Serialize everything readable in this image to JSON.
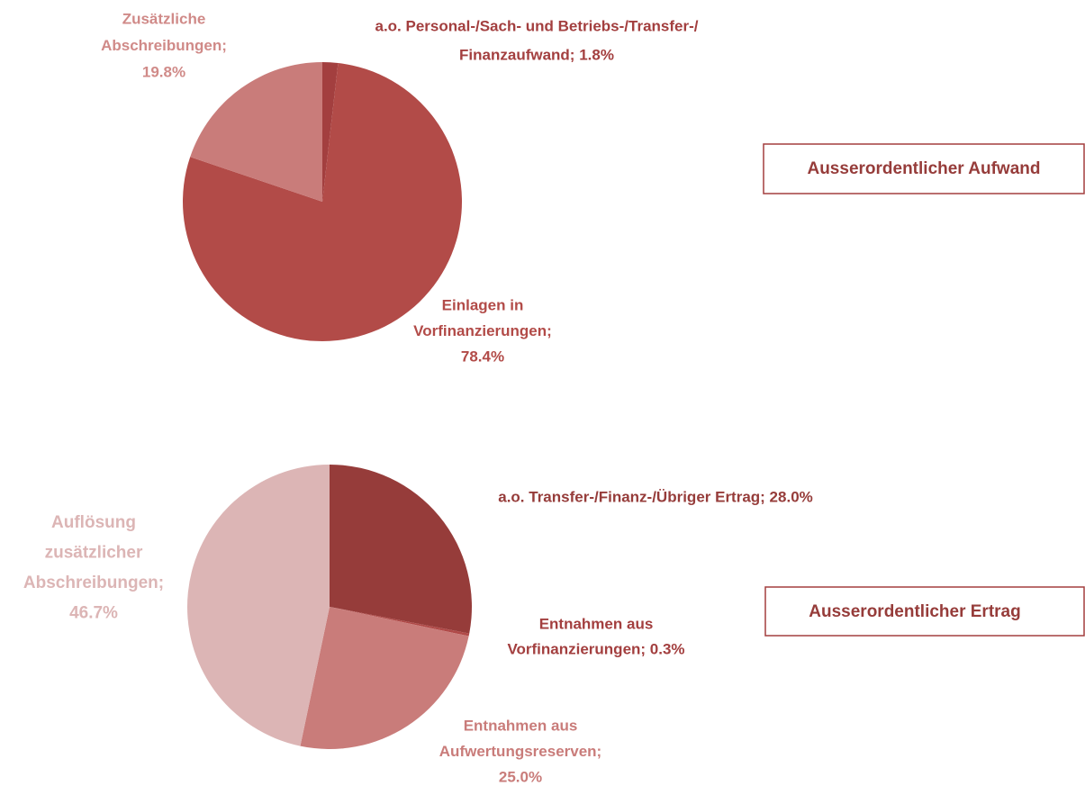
{
  "chart_data": [
    {
      "type": "pie",
      "title": "Ausserordentlicher Aufwand",
      "values": [
        1.8,
        78.4,
        19.8
      ],
      "value_labels": [
        [
          "a.o. Personal-/Sach- und Betriebs-/Transfer-/",
          "Finanzaufwand; 1.8%"
        ],
        [
          "Einlagen in",
          "Vorfinanzierungen;",
          "78.4%"
        ],
        [
          "Zusätzliche",
          "Abschreibungen;",
          "19.8%"
        ]
      ],
      "colors": [
        "#a33f3f",
        "#b24b48",
        "#c97c7a"
      ]
    },
    {
      "type": "pie",
      "title": "Ausserordentlicher Ertrag",
      "values": [
        28.0,
        0.3,
        25.0,
        46.7
      ],
      "value_labels": [
        [
          "a.o. Transfer-/Finanz-/Übriger Ertrag; 28.0%"
        ],
        [
          "Entnahmen aus",
          "Vorfinanzierungen; 0.3%"
        ],
        [
          "Entnahmen aus",
          "Aufwertungsreserven;",
          "25.0%"
        ],
        [
          "Auflösung",
          "zusätzlicher",
          "Abschreibungen;",
          "46.7%"
        ]
      ],
      "colors": [
        "#963c3a",
        "#b04a48",
        "#c97c7a",
        "#dcb5b5"
      ]
    }
  ]
}
